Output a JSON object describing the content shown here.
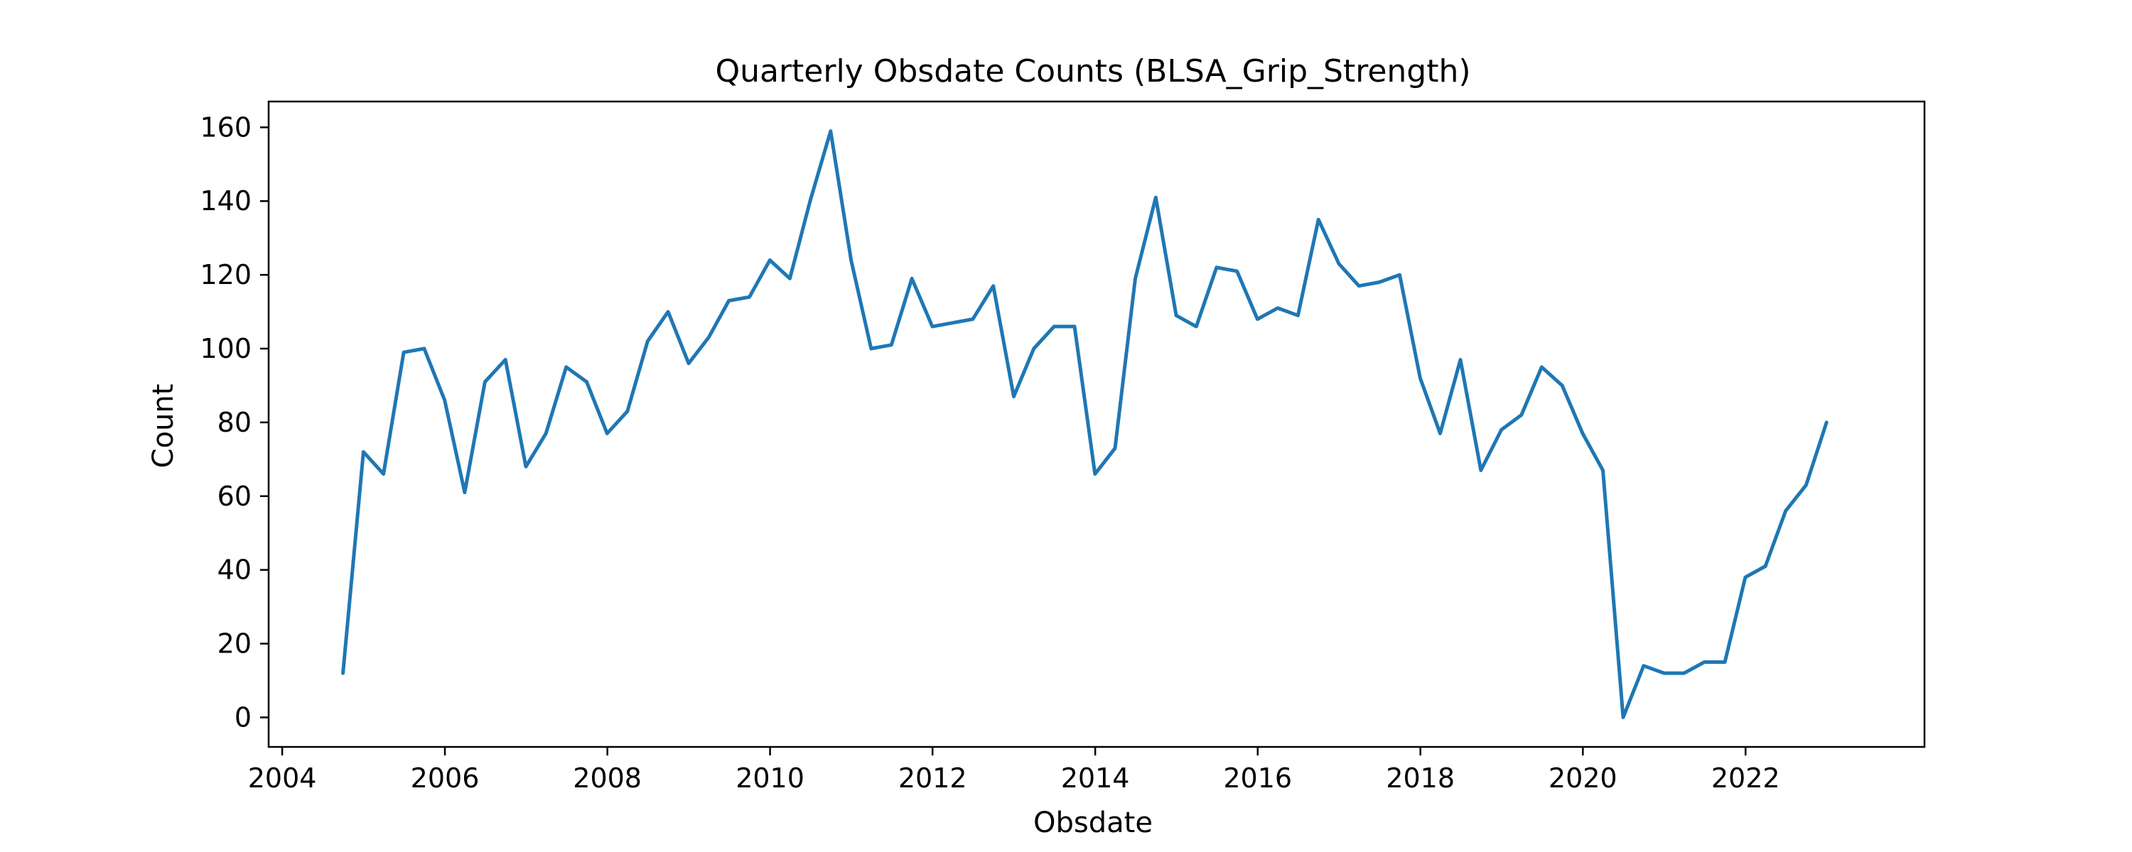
{
  "chart_data": {
    "type": "line",
    "title": "Quarterly Obsdate Counts (BLSA_Grip_Strength)",
    "xlabel": "Obsdate",
    "ylabel": "Count",
    "x_kind": "date",
    "xlim": [
      "2003-11-01",
      "2024-03-15"
    ],
    "ylim": [
      -8,
      167
    ],
    "x_ticks": [
      "2004-01-01",
      "2006-01-01",
      "2008-01-01",
      "2010-01-01",
      "2012-01-01",
      "2014-01-01",
      "2016-01-01",
      "2018-01-01",
      "2020-01-01",
      "2022-01-01"
    ],
    "x_tick_labels": [
      "2004",
      "2006",
      "2008",
      "2010",
      "2012",
      "2014",
      "2016",
      "2018",
      "2020",
      "2022"
    ],
    "y_ticks": [
      0,
      20,
      40,
      60,
      80,
      100,
      120,
      140,
      160
    ],
    "y_tick_labels": [
      "0",
      "20",
      "40",
      "60",
      "80",
      "100",
      "120",
      "140",
      "160"
    ],
    "grid": false,
    "legend": false,
    "colors": {
      "series": "#1f77b4",
      "frame": "#000000"
    },
    "x": [
      "2004-09-30",
      "2004-12-31",
      "2005-03-31",
      "2005-06-30",
      "2005-09-30",
      "2005-12-31",
      "2006-03-31",
      "2006-06-30",
      "2006-09-30",
      "2006-12-31",
      "2007-03-31",
      "2007-06-30",
      "2007-09-30",
      "2007-12-31",
      "2008-03-31",
      "2008-06-30",
      "2008-09-30",
      "2008-12-31",
      "2009-03-31",
      "2009-06-30",
      "2009-09-30",
      "2009-12-31",
      "2010-03-31",
      "2010-06-30",
      "2010-09-30",
      "2010-12-31",
      "2011-03-31",
      "2011-06-30",
      "2011-09-30",
      "2011-12-31",
      "2012-03-31",
      "2012-06-30",
      "2012-09-30",
      "2012-12-31",
      "2013-03-31",
      "2013-06-30",
      "2013-09-30",
      "2013-12-31",
      "2014-03-31",
      "2014-06-30",
      "2014-09-30",
      "2014-12-31",
      "2015-03-31",
      "2015-06-30",
      "2015-09-30",
      "2015-12-31",
      "2016-03-31",
      "2016-06-30",
      "2016-09-30",
      "2016-12-31",
      "2017-03-31",
      "2017-06-30",
      "2017-09-30",
      "2017-12-31",
      "2018-03-31",
      "2018-06-30",
      "2018-09-30",
      "2018-12-31",
      "2019-03-31",
      "2019-06-30",
      "2019-09-30",
      "2019-12-31",
      "2020-03-31",
      "2020-06-30",
      "2020-09-30",
      "2020-12-31",
      "2021-03-31",
      "2021-06-30",
      "2021-09-30",
      "2021-12-31",
      "2022-03-31",
      "2022-06-30",
      "2022-09-30",
      "2022-12-31"
    ],
    "series": [
      {
        "values": [
          12,
          72,
          66,
          99,
          100,
          86,
          61,
          91,
          97,
          68,
          77,
          95,
          91,
          77,
          83,
          102,
          110,
          96,
          103,
          113,
          114,
          124,
          119,
          140,
          159,
          124,
          100,
          101,
          119,
          106,
          107,
          108,
          117,
          87,
          100,
          106,
          106,
          66,
          73,
          119,
          141,
          109,
          106,
          122,
          121,
          108,
          111,
          109,
          135,
          123,
          117,
          118,
          120,
          92,
          77,
          97,
          67,
          78,
          82,
          95,
          90,
          77,
          67,
          0,
          14,
          12,
          12,
          15,
          15,
          38,
          41,
          56,
          63,
          80
        ]
      }
    ]
  }
}
